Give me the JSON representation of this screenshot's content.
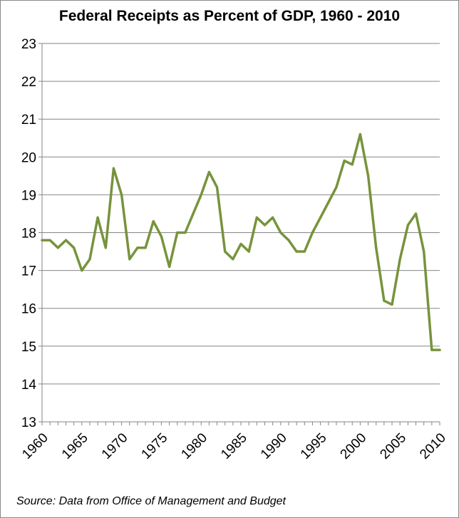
{
  "chart_data": {
    "type": "line",
    "title": "Federal Receipts as Percent of GDP, 1960 - 2010",
    "source": "Source: Data from Office of Management and Budget",
    "xlabel": "",
    "ylabel": "",
    "x": [
      1960,
      1961,
      1962,
      1963,
      1964,
      1965,
      1966,
      1967,
      1968,
      1969,
      1970,
      1971,
      1972,
      1973,
      1974,
      1975,
      1976,
      1977,
      1978,
      1979,
      1980,
      1981,
      1982,
      1983,
      1984,
      1985,
      1986,
      1987,
      1988,
      1989,
      1990,
      1991,
      1992,
      1993,
      1994,
      1995,
      1996,
      1997,
      1998,
      1999,
      2000,
      2001,
      2002,
      2003,
      2004,
      2005,
      2006,
      2007,
      2008,
      2009,
      2010
    ],
    "series": [
      {
        "values": [
          17.8,
          17.8,
          17.6,
          17.8,
          17.6,
          17.0,
          17.3,
          18.4,
          17.6,
          19.7,
          19.0,
          17.3,
          17.6,
          17.6,
          18.3,
          17.9,
          17.1,
          18.0,
          18.0,
          18.5,
          19.0,
          19.6,
          19.2,
          17.5,
          17.3,
          17.7,
          17.5,
          18.4,
          18.2,
          18.4,
          18.0,
          17.8,
          17.5,
          17.5,
          18.0,
          18.4,
          18.8,
          19.2,
          19.9,
          19.8,
          20.6,
          19.5,
          17.6,
          16.2,
          16.1,
          17.3,
          18.2,
          18.5,
          17.5,
          14.9,
          14.9
        ]
      }
    ],
    "xticks": [
      "1960",
      "1965",
      "1970",
      "1975",
      "1980",
      "1985",
      "1990",
      "1995",
      "2000",
      "2005",
      "2010"
    ],
    "yticks": [
      "13",
      "14",
      "15",
      "16",
      "17",
      "18",
      "19",
      "20",
      "21",
      "22",
      "23"
    ],
    "ylim": [
      13,
      23
    ],
    "xlim": [
      1960,
      2010
    ],
    "grid": "horizontal",
    "legend": "none",
    "colors": {
      "line": "#77933C",
      "grid": "#868686",
      "axis": "#868686"
    }
  }
}
